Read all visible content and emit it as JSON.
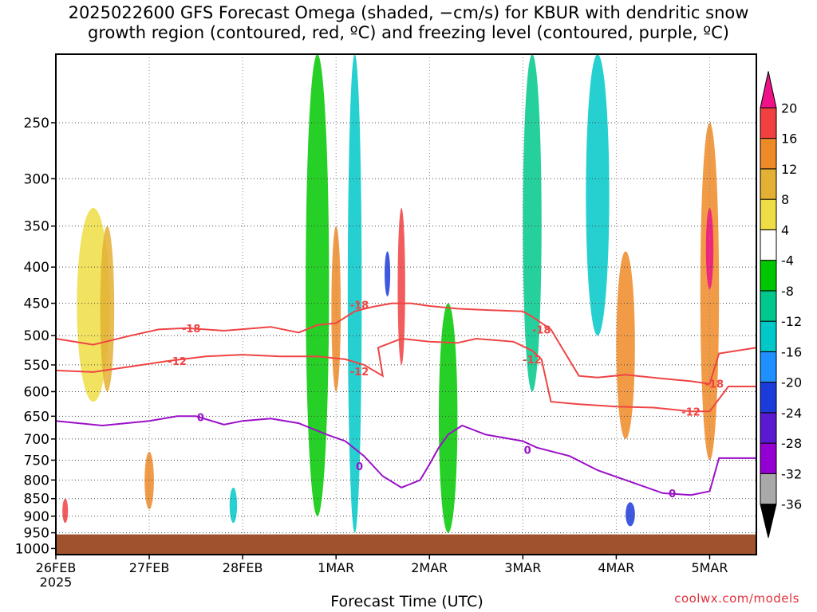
{
  "title_lines": [
    "2025022600 GFS Forecast Omega (shaded, −cm/s) for KBUR with dendritic snow",
    "growth region (contoured, red, ºC) and freezing level (contoured, purple, ºC)"
  ],
  "credit": "coolwx.com/models",
  "chart_data": {
    "type": "heatmap",
    "xlabel": "Forecast Time (UTC)",
    "ylabel": "",
    "x_ticks": [
      {
        "label": "26FEB",
        "sub": "2025",
        "day": 0
      },
      {
        "label": "27FEB",
        "sub": "",
        "day": 1
      },
      {
        "label": "28FEB",
        "sub": "",
        "day": 2
      },
      {
        "label": "1MAR",
        "sub": "",
        "day": 3
      },
      {
        "label": "2MAR",
        "sub": "",
        "day": 4
      },
      {
        "label": "3MAR",
        "sub": "",
        "day": 5
      },
      {
        "label": "4MAR",
        "sub": "",
        "day": 6
      },
      {
        "label": "5MAR",
        "sub": "",
        "day": 7
      }
    ],
    "xlim_days": [
      0,
      7.5
    ],
    "y_ticks": [
      250,
      300,
      350,
      400,
      450,
      500,
      550,
      600,
      650,
      700,
      750,
      800,
      850,
      900,
      950,
      1000
    ],
    "ylim": [
      200,
      1020
    ],
    "y_scale": "log-pressure",
    "grid": true,
    "surface_level": 955,
    "surface_color": "#a0522d",
    "colorbar": {
      "levels": [
        -36,
        -32,
        -28,
        -24,
        -20,
        -16,
        -12,
        -8,
        -4,
        4,
        8,
        12,
        16,
        20
      ],
      "labels": [
        "-36",
        "-32",
        "-28",
        "-24",
        "-20",
        "-16",
        "-12",
        "-8",
        "-4",
        "4",
        "8",
        "12",
        "16",
        "20"
      ],
      "colors": [
        "#000000",
        "#a9a9a9",
        "#9400d3",
        "#5a1ad2",
        "#1c3bdb",
        "#1e90ff",
        "#00c8c8",
        "#00c88c",
        "#00c800",
        "#ffffff",
        "#eedd44",
        "#e4b034",
        "#f08a26",
        "#f04040",
        "#ee1188"
      ]
    },
    "contours": [
      {
        "name": "-18",
        "color": "#ef4444",
        "label": "-18",
        "points": [
          [
            0,
            505
          ],
          [
            0.4,
            515
          ],
          [
            0.8,
            500
          ],
          [
            1.1,
            490
          ],
          [
            1.4,
            488
          ],
          [
            1.8,
            492
          ],
          [
            2.3,
            486
          ],
          [
            2.6,
            495
          ],
          [
            2.8,
            483
          ],
          [
            3.0,
            480
          ],
          [
            3.2,
            462
          ],
          [
            3.4,
            455
          ],
          [
            3.6,
            450
          ],
          [
            3.8,
            450
          ],
          [
            4.0,
            454
          ],
          [
            4.3,
            458
          ],
          [
            4.6,
            460
          ],
          [
            5.0,
            462
          ],
          [
            5.1,
            470
          ],
          [
            5.3,
            490
          ],
          [
            5.6,
            570
          ],
          [
            5.8,
            573
          ],
          [
            6.1,
            568
          ],
          [
            6.5,
            575
          ],
          [
            6.8,
            580
          ],
          [
            7.0,
            585
          ],
          [
            7.1,
            530
          ],
          [
            7.5,
            520
          ]
        ],
        "label_pos": [
          [
            1.45,
            488
          ],
          [
            3.25,
            452
          ],
          [
            5.2,
            490
          ],
          [
            7.05,
            585
          ]
        ]
      },
      {
        "name": "-12",
        "color": "#ef4444",
        "label": "-12",
        "points": [
          [
            0,
            560
          ],
          [
            0.4,
            563
          ],
          [
            0.8,
            553
          ],
          [
            1.2,
            543
          ],
          [
            1.6,
            535
          ],
          [
            2.0,
            532
          ],
          [
            2.4,
            535
          ],
          [
            2.8,
            535
          ],
          [
            3.1,
            540
          ],
          [
            3.3,
            550
          ],
          [
            3.5,
            570
          ],
          [
            3.45,
            520
          ],
          [
            3.7,
            505
          ],
          [
            4.0,
            510
          ],
          [
            4.3,
            512
          ],
          [
            4.5,
            505
          ],
          [
            4.9,
            510
          ],
          [
            5.1,
            525
          ],
          [
            5.2,
            540
          ],
          [
            5.3,
            620
          ],
          [
            5.6,
            625
          ],
          [
            6.0,
            630
          ],
          [
            6.4,
            632
          ],
          [
            6.8,
            640
          ],
          [
            7.0,
            640
          ],
          [
            7.2,
            590
          ],
          [
            7.5,
            590
          ]
        ],
        "label_pos": [
          [
            1.3,
            543
          ],
          [
            3.25,
            562
          ],
          [
            5.1,
            540
          ],
          [
            6.8,
            640
          ]
        ]
      },
      {
        "name": "0",
        "color": "#9a10c8",
        "label": "0",
        "points": [
          [
            0,
            660
          ],
          [
            0.5,
            670
          ],
          [
            1.0,
            660
          ],
          [
            1.3,
            650
          ],
          [
            1.5,
            650
          ],
          [
            1.8,
            668
          ],
          [
            2.0,
            660
          ],
          [
            2.3,
            655
          ],
          [
            2.6,
            665
          ],
          [
            2.9,
            690
          ],
          [
            3.1,
            705
          ],
          [
            3.3,
            740
          ],
          [
            3.5,
            790
          ],
          [
            3.7,
            820
          ],
          [
            3.9,
            800
          ],
          [
            4.0,
            760
          ],
          [
            4.1,
            720
          ],
          [
            4.2,
            690
          ],
          [
            4.35,
            670
          ],
          [
            4.6,
            690
          ],
          [
            5.0,
            705
          ],
          [
            5.15,
            720
          ],
          [
            5.5,
            740
          ],
          [
            5.8,
            775
          ],
          [
            6.1,
            800
          ],
          [
            6.5,
            835
          ],
          [
            6.8,
            840
          ],
          [
            7.0,
            830
          ],
          [
            7.1,
            745
          ],
          [
            7.5,
            745
          ]
        ],
        "label_pos": [
          [
            1.55,
            652
          ],
          [
            3.25,
            765
          ],
          [
            5.05,
            725
          ],
          [
            6.6,
            835
          ]
        ]
      }
    ],
    "cells": [
      {
        "day": 0.1,
        "p": 900,
        "color": "#f04040",
        "w": 0.06,
        "p1": 850,
        "p2": 920
      },
      {
        "day": 0.4,
        "p": 450,
        "color": "#eedd44",
        "w": 0.35,
        "p1": 330,
        "p2": 620
      },
      {
        "day": 0.55,
        "p": 400,
        "color": "#e4b034",
        "w": 0.15,
        "p1": 350,
        "p2": 600
      },
      {
        "day": 1.0,
        "p": 820,
        "color": "#f08a26",
        "w": 0.1,
        "p1": 730,
        "p2": 880
      },
      {
        "day": 1.9,
        "p": 860,
        "color": "#00c8c8",
        "w": 0.08,
        "p1": 820,
        "p2": 920
      },
      {
        "day": 2.8,
        "p": 300,
        "color": "#00c800",
        "w": 0.25,
        "p1": 200,
        "p2": 900
      },
      {
        "day": 3.0,
        "p": 450,
        "color": "#f08a26",
        "w": 0.1,
        "p1": 350,
        "p2": 600
      },
      {
        "day": 3.2,
        "p": 300,
        "color": "#00c8c8",
        "w": 0.15,
        "p1": 200,
        "p2": 950
      },
      {
        "day": 3.55,
        "p": 400,
        "color": "#1c3bdb",
        "w": 0.06,
        "p1": 380,
        "p2": 440
      },
      {
        "day": 3.7,
        "p": 450,
        "color": "#f04040",
        "w": 0.08,
        "p1": 330,
        "p2": 550
      },
      {
        "day": 4.2,
        "p": 600,
        "color": "#00c800",
        "w": 0.2,
        "p1": 450,
        "p2": 950
      },
      {
        "day": 5.1,
        "p": 200,
        "color": "#00c88c",
        "w": 0.2,
        "p1": 200,
        "p2": 600
      },
      {
        "day": 5.8,
        "p": 300,
        "color": "#00c8c8",
        "w": 0.25,
        "p1": 200,
        "p2": 500
      },
      {
        "day": 6.1,
        "p": 550,
        "color": "#f08a26",
        "w": 0.2,
        "p1": 380,
        "p2": 700
      },
      {
        "day": 6.15,
        "p": 900,
        "color": "#1c3bdb",
        "w": 0.1,
        "p1": 860,
        "p2": 930
      },
      {
        "day": 7.0,
        "p": 350,
        "color": "#f08a26",
        "w": 0.2,
        "p1": 250,
        "p2": 750
      },
      {
        "day": 7.0,
        "p": 380,
        "color": "#ee1188",
        "w": 0.08,
        "p1": 330,
        "p2": 430
      }
    ]
  }
}
